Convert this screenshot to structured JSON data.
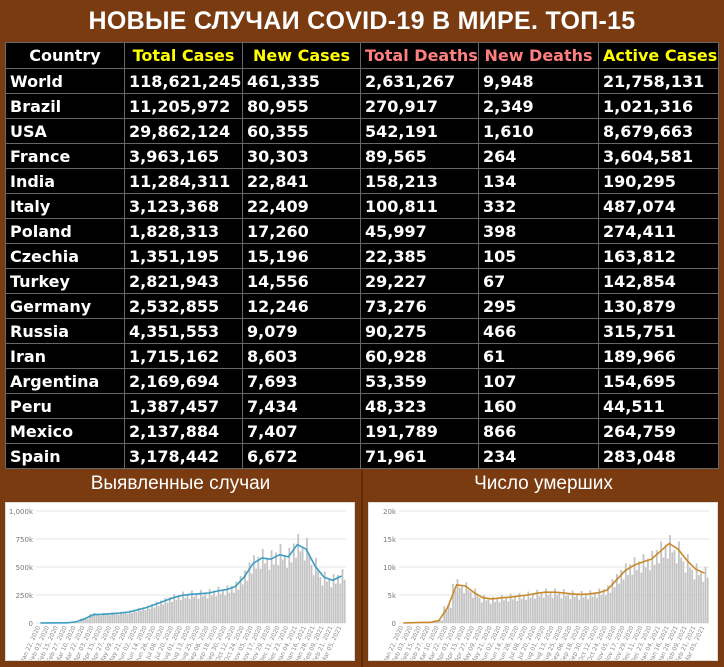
{
  "title": "НОВЫЕ СЛУЧАИ COVID-19 В МИРЕ. ТОП-15",
  "colors": {
    "background": "#7a3b10",
    "header_white": "#ffffff",
    "header_yellow": "#ffff00",
    "header_salmon": "#ff7f7f",
    "cases_line": "#3a9ec2",
    "deaths_line": "#c98a2a",
    "bars": "#c4c4c4"
  },
  "table": {
    "columns": [
      {
        "label": "Country",
        "color": "#ffffff"
      },
      {
        "label": "Total Cases",
        "color": "#ffff00"
      },
      {
        "label": "New Cases",
        "color": "#ffff00"
      },
      {
        "label": "Total Deaths",
        "color": "#ff7f7f"
      },
      {
        "label": "New Deaths",
        "color": "#ff7f7f"
      },
      {
        "label": "Active Cases",
        "color": "#ffff00"
      }
    ],
    "rows": [
      [
        "World",
        "118,621,245",
        "461,335",
        "2,631,267",
        "9,948",
        "21,758,131"
      ],
      [
        "Brazil",
        "11,205,972",
        "80,955",
        "270,917",
        "2,349",
        "1,021,316"
      ],
      [
        "USA",
        "29,862,124",
        "60,355",
        "542,191",
        "1,610",
        "8,679,663"
      ],
      [
        "France",
        "3,963,165",
        "30,303",
        "89,565",
        "264",
        "3,604,581"
      ],
      [
        "India",
        "11,284,311",
        "22,841",
        "158,213",
        "134",
        "190,295"
      ],
      [
        "Italy",
        "3,123,368",
        "22,409",
        "100,811",
        "332",
        "487,074"
      ],
      [
        "Poland",
        "1,828,313",
        "17,260",
        "45,997",
        "398",
        "274,411"
      ],
      [
        "Czechia",
        "1,351,195",
        "15,196",
        "22,385",
        "105",
        "163,812"
      ],
      [
        "Turkey",
        "2,821,943",
        "14,556",
        "29,227",
        "67",
        "142,854"
      ],
      [
        "Germany",
        "2,532,855",
        "12,246",
        "73,276",
        "295",
        "130,879"
      ],
      [
        "Russia",
        "4,351,553",
        "9,079",
        "90,275",
        "466",
        "315,751"
      ],
      [
        "Iran",
        "1,715,162",
        "8,603",
        "60,928",
        "61",
        "189,966"
      ],
      [
        "Argentina",
        "2,169,694",
        "7,693",
        "53,359",
        "107",
        "154,695"
      ],
      [
        "Peru",
        "1,387,457",
        "7,434",
        "48,323",
        "160",
        "44,511"
      ],
      [
        "Mexico",
        "2,137,884",
        "7,407",
        "191,789",
        "866",
        "264,759"
      ],
      [
        "Spain",
        "3,178,442",
        "6,672",
        "71,961",
        "234",
        "283,048"
      ]
    ]
  },
  "panels": {
    "left_title": "Выявленные случаи",
    "right_title": "Число умерших"
  },
  "chart_data": [
    {
      "type": "bar",
      "title": "Выявленные случаи",
      "yticks": [
        "0",
        "250k",
        "500k",
        "750k",
        "1,000k"
      ],
      "ylim": [
        0,
        1000000
      ],
      "xticks": [
        "Jan 22, 2020",
        "Feb 03, 2020",
        "Feb 15, 2020",
        "Feb 27, 2020",
        "Mar 10, 2020",
        "Mar 22, 2020",
        "Apr 03, 2020",
        "Apr 15, 2020",
        "Apr 27, 2020",
        "May 09, 2020",
        "May 21, 2020",
        "Jun 02, 2020",
        "Jun 14, 2020",
        "Jun 26, 2020",
        "Jul 08, 2020",
        "Jul 20, 2020",
        "Aug 01, 2020",
        "Aug 13, 2020",
        "Aug 25, 2020",
        "Sep 06, 2020",
        "Sep 18, 2020",
        "Sep 30, 2020",
        "Oct 12, 2020",
        "Oct 24, 2020",
        "Nov 05, 2020",
        "Nov 17, 2020",
        "Nov 29, 2020",
        "Dec 11, 2020",
        "Dec 23, 2020",
        "Jan 04, 2021",
        "Jan 16, 2021",
        "Jan 28, 2021",
        "Feb 09, 2021",
        "Feb 21, 2021",
        "Mar 05, 2021"
      ],
      "series": [
        {
          "name": "",
          "kind": "daily",
          "values": [
            0,
            1000,
            2000,
            2000,
            10000,
            40000,
            80000,
            80000,
            85000,
            90000,
            100000,
            120000,
            140000,
            170000,
            200000,
            230000,
            250000,
            260000,
            265000,
            270000,
            290000,
            300000,
            330000,
            420000,
            540000,
            590000,
            580000,
            630000,
            600000,
            710000,
            680000,
            520000,
            410000,
            390000,
            430000
          ]
        },
        {
          "name": "",
          "kind": "7-day average",
          "values": [
            0,
            1000,
            2000,
            2000,
            10000,
            38000,
            75000,
            78000,
            83000,
            88000,
            98000,
            118000,
            138000,
            168000,
            196000,
            226000,
            246000,
            256000,
            262000,
            268000,
            286000,
            298000,
            325000,
            410000,
            530000,
            580000,
            570000,
            610000,
            590000,
            700000,
            660000,
            510000,
            410000,
            380000,
            420000
          ]
        }
      ]
    },
    {
      "type": "bar",
      "title": "Число умерших",
      "yticks": [
        "0",
        "5k",
        "10k",
        "15k",
        "20k"
      ],
      "ylim": [
        0,
        20000
      ],
      "xticks": [
        "Jan 22, 2020",
        "Feb 03, 2020",
        "Feb 15, 2020",
        "Feb 27, 2020",
        "Mar 10, 2020",
        "Mar 22, 2020",
        "Apr 03, 2020",
        "Apr 15, 2020",
        "Apr 27, 2020",
        "May 09, 2020",
        "May 21, 2020",
        "Jun 02, 2020",
        "Jun 14, 2020",
        "Jun 26, 2020",
        "Jul 08, 2020",
        "Jul 20, 2020",
        "Aug 01, 2020",
        "Aug 13, 2020",
        "Aug 25, 2020",
        "Sep 06, 2020",
        "Sep 18, 2020",
        "Sep 30, 2020",
        "Oct 12, 2020",
        "Oct 24, 2020",
        "Nov 05, 2020",
        "Nov 17, 2020",
        "Nov 29, 2020",
        "Dec 11, 2020",
        "Dec 23, 2020",
        "Jan 04, 2021",
        "Jan 16, 2021",
        "Jan 28, 2021",
        "Feb 09, 2021",
        "Feb 21, 2021",
        "Mar 05, 2021"
      ],
      "series": [
        {
          "name": "",
          "kind": "daily",
          "values": [
            0,
            50,
            100,
            100,
            500,
            3000,
            7000,
            6500,
            5500,
            4500,
            4200,
            4500,
            4700,
            4800,
            5000,
            5300,
            5500,
            5500,
            5400,
            5200,
            5100,
            5200,
            5500,
            6000,
            7800,
            9500,
            10500,
            11000,
            11500,
            13000,
            14000,
            13000,
            11000,
            9500,
            9000
          ]
        },
        {
          "name": "",
          "kind": "7-day average",
          "values": [
            0,
            50,
            100,
            100,
            450,
            2800,
            6800,
            6600,
            5400,
            4500,
            4300,
            4500,
            4600,
            4800,
            5000,
            5300,
            5500,
            5500,
            5400,
            5200,
            5100,
            5200,
            5400,
            5900,
            7600,
            9300,
            10300,
            10900,
            11400,
            12800,
            14200,
            13200,
            11200,
            9600,
            8900
          ]
        }
      ]
    }
  ]
}
